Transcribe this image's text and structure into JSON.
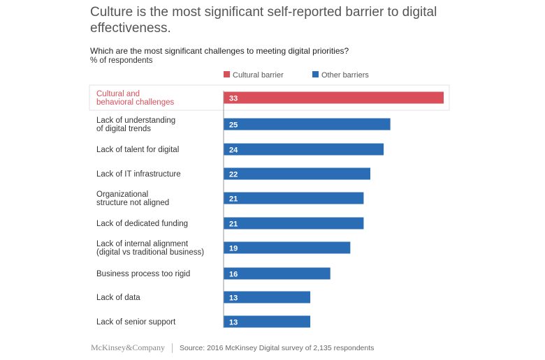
{
  "title": "Culture is the most significant self-reported barrier to digital effectiveness.",
  "question": "Which are the most significant challenges to meeting digital priorities?",
  "unit": "% of respondents",
  "footer": {
    "logo": "McKinsey&Company",
    "source": "Source: 2016 McKinsey Digital survey of 2,135 respondents"
  },
  "chart_data": {
    "type": "bar",
    "orientation": "horizontal",
    "legend": [
      {
        "name": "Cultural barrier",
        "color": "#d9505a"
      },
      {
        "name": "Other barriers",
        "color": "#2a6db5"
      }
    ],
    "legend_position": "top",
    "categories": [
      [
        "Cultural and",
        "behavioral challenges"
      ],
      [
        "Lack of understanding",
        "of digital trends"
      ],
      [
        "Lack of talent for digital"
      ],
      [
        "Lack of IT infrastructure"
      ],
      [
        "Organizational",
        "structure not aligned"
      ],
      [
        "Lack of dedicated funding"
      ],
      [
        "Lack of internal alignment",
        "(digital vs traditional business)"
      ],
      [
        "Business process too rigid"
      ],
      [
        "Lack of data"
      ],
      [
        "Lack of senior support"
      ]
    ],
    "values": [
      33,
      25,
      24,
      22,
      21,
      21,
      19,
      16,
      13,
      13
    ],
    "series_index": [
      0,
      1,
      1,
      1,
      1,
      1,
      1,
      1,
      1,
      1
    ],
    "xlim": [
      0,
      33
    ],
    "grid": false
  }
}
